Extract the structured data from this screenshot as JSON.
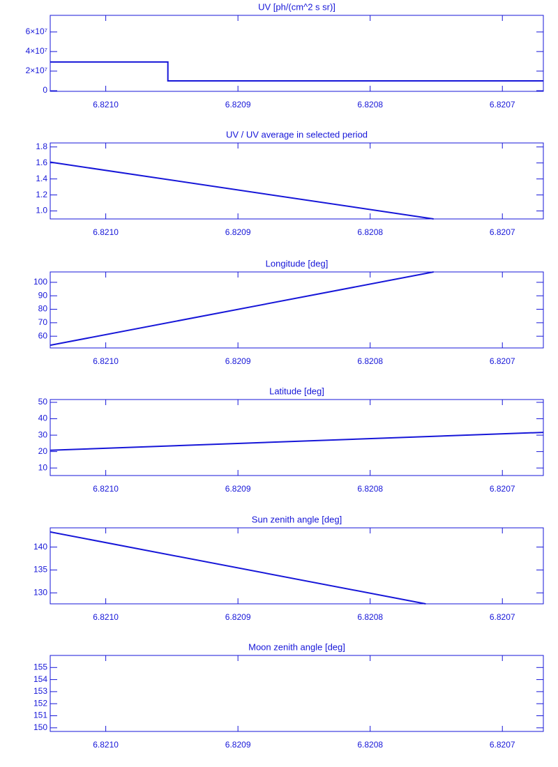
{
  "chart_data": [
    {
      "type": "line",
      "title": "UV [ph/(cm^2 s sr)]",
      "color": "#1616d8",
      "xlim": [
        6.821042,
        6.820669
      ],
      "xticks": [
        {
          "value": 6.821,
          "label": "6.8210"
        },
        6.8209,
        6.8208,
        6.8207
      ],
      "ylim": [
        -700000,
        77000000
      ],
      "yticks": [
        0,
        {
          "value": 20000000,
          "label": "2×10⁷"
        },
        {
          "value": 40000000,
          "label": "4×10⁷"
        },
        {
          "value": 60000000,
          "label": "6×10⁷"
        }
      ],
      "x": [
        6.821042,
        6.820953,
        6.820953,
        6.820669
      ],
      "values": [
        29300000,
        29300000,
        10000000,
        10000000
      ]
    },
    {
      "type": "line",
      "title": "UV / UV average in selected period",
      "color": "#1616d8",
      "xlim": [
        6.821042,
        6.820669
      ],
      "xticks": [
        {
          "value": 6.821,
          "label": "6.8210"
        },
        6.8209,
        6.8208,
        6.8207
      ],
      "ylim": [
        0.9,
        1.85
      ],
      "yticks": [
        {
          "value": 1.0,
          "label": "1.0"
        },
        1.2,
        1.4,
        1.6,
        1.8
      ],
      "x": [
        6.821042,
        6.820752
      ],
      "values": [
        1.61,
        0.9
      ]
    },
    {
      "type": "line",
      "title": "Longitude [deg]",
      "color": "#1616d8",
      "xlim": [
        6.821042,
        6.820669
      ],
      "xticks": [
        {
          "value": 6.821,
          "label": "6.8210"
        },
        6.8209,
        6.8208,
        6.8207
      ],
      "ylim": [
        51.3,
        107.7
      ],
      "yticks": [
        60,
        70,
        80,
        90,
        100
      ],
      "x": [
        6.821042,
        6.820752
      ],
      "values": [
        53.3,
        107.7
      ]
    },
    {
      "type": "line",
      "title": "Latitude [deg]",
      "color": "#1616d8",
      "xlim": [
        6.821042,
        6.820669
      ],
      "xticks": [
        {
          "value": 6.821,
          "label": "6.8210"
        },
        6.8209,
        6.8208,
        6.8207
      ],
      "ylim": [
        5.4,
        51.7
      ],
      "yticks": [
        10,
        20,
        30,
        40,
        50
      ],
      "x": [
        6.821042,
        6.820669
      ],
      "values": [
        20.8,
        31.7
      ]
    },
    {
      "type": "line",
      "title": "Sun zenith angle [deg]",
      "color": "#1616d8",
      "xlim": [
        6.821042,
        6.820669
      ],
      "xticks": [
        {
          "value": 6.821,
          "label": "6.8210"
        },
        6.8209,
        6.8208,
        6.8207
      ],
      "ylim": [
        127.6,
        144.2
      ],
      "yticks": [
        130,
        135,
        140
      ],
      "x": [
        6.821042,
        6.820758
      ],
      "values": [
        143.3,
        127.6
      ]
    },
    {
      "type": "line",
      "title": "Moon zenith angle [deg]",
      "color": "#1616d8",
      "xlim": [
        6.821042,
        6.820669
      ],
      "xticks": [
        {
          "value": 6.821,
          "label": "6.8210"
        },
        6.8209,
        6.8208,
        6.8207
      ],
      "ylim": [
        149.7,
        156.0
      ],
      "yticks": [
        150,
        151,
        152,
        153,
        154,
        155
      ]
    }
  ]
}
